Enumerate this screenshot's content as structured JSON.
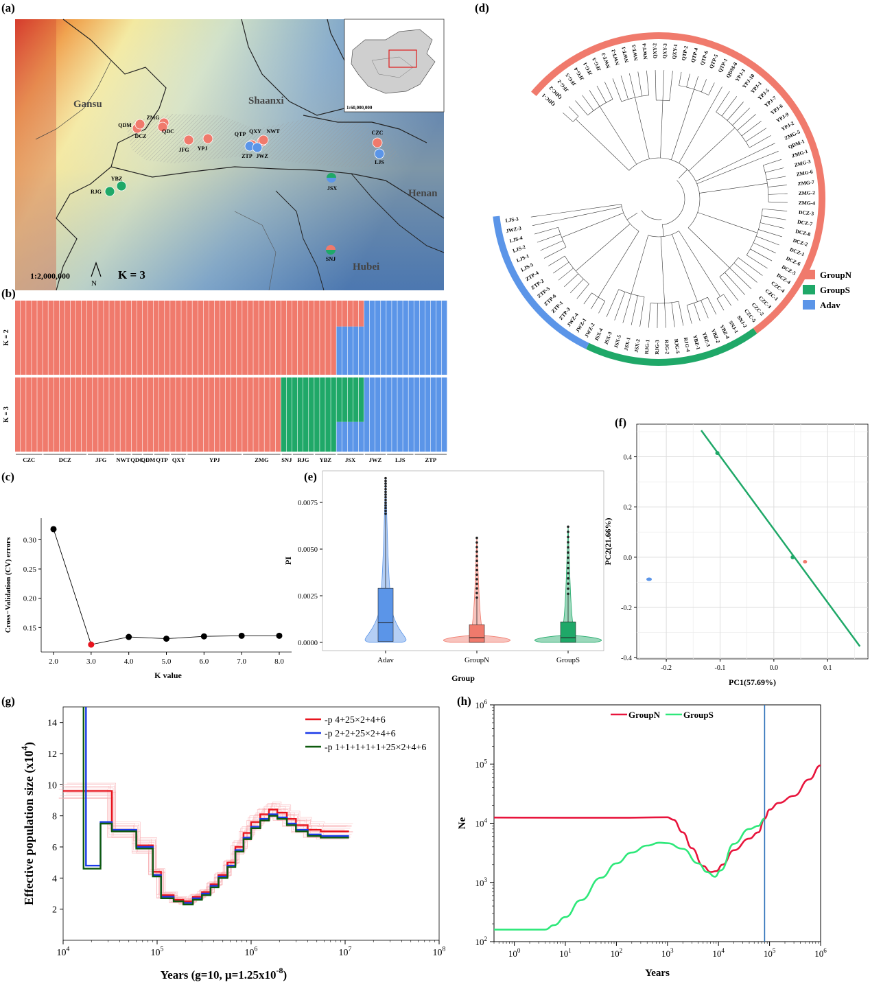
{
  "panels": {
    "a": "(a)",
    "b": "(b)",
    "c": "(c)",
    "d": "(d)",
    "e": "(e)",
    "f": "(f)",
    "g": "(g)",
    "h": "(h)"
  },
  "map": {
    "provinces": [
      "Gansu",
      "Shaanxi",
      "Henan",
      "Hubei"
    ],
    "sites": [
      {
        "code": "QDM",
        "colors": [
          "#f07a6c"
        ]
      },
      {
        "code": "ZMG",
        "colors": [
          "#f07a6c"
        ]
      },
      {
        "code": "DCZ",
        "colors": [
          "#f07a6c"
        ]
      },
      {
        "code": "QDC",
        "colors": [
          "#f07a6c"
        ]
      },
      {
        "code": "JFG",
        "colors": [
          "#f07a6c"
        ]
      },
      {
        "code": "YPJ",
        "colors": [
          "#f07a6c"
        ]
      },
      {
        "code": "QTP",
        "colors": [
          "#f07a6c"
        ]
      },
      {
        "code": "QXY",
        "colors": [
          "#f07a6c"
        ]
      },
      {
        "code": "NWT",
        "colors": [
          "#f07a6c"
        ]
      },
      {
        "code": "ZTP",
        "colors": [
          "#5b95e8"
        ]
      },
      {
        "code": "JWZ",
        "colors": [
          "#5b95e8"
        ]
      },
      {
        "code": "CZC",
        "colors": [
          "#f07a6c"
        ]
      },
      {
        "code": "LJS",
        "colors": [
          "#5b95e8"
        ]
      },
      {
        "code": "JSX",
        "colors": [
          "#1fa868",
          "#5b95e8"
        ]
      },
      {
        "code": "YBZ",
        "colors": [
          "#1fa868"
        ]
      },
      {
        "code": "RJG",
        "colors": [
          "#1fa868"
        ]
      },
      {
        "code": "SNJ",
        "colors": [
          "#f07a6c",
          "#1fa868"
        ]
      }
    ],
    "scale": "1:2,000,000",
    "north": "N",
    "k_label": "K = 3",
    "inset_scale": "1:60,000,000"
  },
  "colors": {
    "groupN": "#f07a6c",
    "groupS": "#1fa868",
    "adav": "#5b95e8"
  },
  "structure": {
    "rows": [
      "K = 2",
      "K = 3"
    ],
    "populations": [
      {
        "name": "CZC",
        "n": 5
      },
      {
        "name": "DCZ",
        "n": 8
      },
      {
        "name": "JFG",
        "n": 5
      },
      {
        "name": "NWT",
        "n": 3
      },
      {
        "name": "QDC",
        "n": 2
      },
      {
        "name": "QDM",
        "n": 2
      },
      {
        "name": "QTP",
        "n": 3
      },
      {
        "name": "QXY",
        "n": 3
      },
      {
        "name": "YPJ",
        "n": 10
      },
      {
        "name": "ZMG",
        "n": 7
      },
      {
        "name": "SNJ",
        "n": 2
      },
      {
        "name": "RJG",
        "n": 4
      },
      {
        "name": "YBZ",
        "n": 4
      },
      {
        "name": "JSX",
        "n": 5
      },
      {
        "name": "JWZ",
        "n": 4
      },
      {
        "name": "LJS",
        "n": 5
      },
      {
        "name": "ZTP",
        "n": 6
      }
    ]
  },
  "cv_chart": {
    "ylabel": "Cross−Validation (CV) errors",
    "xlabel": "K value",
    "x_ticks": [
      "2.0",
      "3.0",
      "4.0",
      "5.0",
      "6.0",
      "7.0",
      "8.0"
    ],
    "y_ticks": [
      "0.15",
      "0.20",
      "0.25",
      "0.30"
    ],
    "points": [
      {
        "k": 2,
        "cv": 0.318
      },
      {
        "k": 3,
        "cv": 0.121
      },
      {
        "k": 4,
        "cv": 0.134
      },
      {
        "k": 5,
        "cv": 0.131
      },
      {
        "k": 6,
        "cv": 0.135
      },
      {
        "k": 7,
        "cv": 0.136
      },
      {
        "k": 8,
        "cv": 0.136
      }
    ]
  },
  "tree": {
    "legend": [
      {
        "label": "GroupN",
        "color": "#f07a6c"
      },
      {
        "label": "GroupS",
        "color": "#1fa868"
      },
      {
        "label": "Adav",
        "color": "#5b95e8"
      }
    ],
    "leaves": [
      "QDC-1",
      "QDC-2",
      "JFG-2",
      "JFG-5",
      "JFG-4",
      "JFG-1",
      "JFG-3",
      "NWT-3",
      "NWT-2",
      "NWT-1",
      "NWT-5",
      "NWT-4",
      "QXY-2",
      "QXY-3",
      "QXY-1",
      "QTP-2",
      "QTP-4",
      "QTP-6",
      "QTP-5",
      "QTP-1",
      "QDM-8",
      "YPJ-3",
      "YPJ-10",
      "YPJ-1",
      "YPJ-5",
      "YPJ-7",
      "YPJ-6",
      "YPJ-9",
      "YPJ-2",
      "ZMG-5",
      "QDM-1",
      "ZMG-1",
      "ZMG-3",
      "ZMG-6",
      "ZMG-7",
      "ZMG-2",
      "ZMG-4",
      "DCZ-3",
      "DCZ-7",
      "DCZ-8",
      "DCZ-2",
      "DCZ-1",
      "DCZ-6",
      "DCZ-5",
      "DCZ-4",
      "CZC-4",
      "CZC-1",
      "CZC-3",
      "CZC-2",
      "CZC-5",
      "SNJ-2",
      "SNJ-1",
      "YBZ-4",
      "YBZ-2",
      "YBZ-3",
      "YBZ-1",
      "RJG-4",
      "RJG-5",
      "RJG-2",
      "RJG-3",
      "RJG-1",
      "JSX-2",
      "JSX-1",
      "JSX-5",
      "JSX-3",
      "JSX-4",
      "JWZ-2",
      "JWZ-1",
      "JWZ-4",
      "ZTP-3",
      "ZTP-1",
      "ZTP-6",
      "ZTP-5",
      "ZTP-2",
      "ZTP-4",
      "LJS-5",
      "LJS-1",
      "LJS-2",
      "LJS-4",
      "JWZ-3",
      "LJS-3"
    ]
  },
  "pi_chart": {
    "ylabel": "PI",
    "xlabel": "Group",
    "y_ticks": [
      "0.0000",
      "0.0025",
      "0.0050",
      "0.0075"
    ],
    "groups": [
      {
        "name": "Adav",
        "color": "#5b95e8",
        "q1": 5e-05,
        "median": 0.00105,
        "q3": 0.0029,
        "wlow": 0.0,
        "whigh": 0.0069,
        "max": 0.0088
      },
      {
        "name": "GroupN",
        "color": "#f07a6c",
        "q1": 0.0,
        "median": 0.00025,
        "q3": 0.00095,
        "wlow": 0.0,
        "whigh": 0.0024,
        "max": 0.0056
      },
      {
        "name": "GroupS",
        "color": "#1fa868",
        "q1": 0.0,
        "median": 0.00025,
        "q3": 0.0011,
        "wlow": 0.0,
        "whigh": 0.0026,
        "max": 0.0062
      }
    ]
  },
  "pca": {
    "xlabel": "PC1(57.69%)",
    "ylabel": "PC2(21.66%)",
    "x_ticks": [
      "-0.2",
      "-0.1",
      "0.0",
      "0.1"
    ],
    "y_ticks": [
      "-0.4",
      "-0.2",
      "0.0",
      "0.2",
      "0.4"
    ],
    "groupS_line": [
      [
        -0.135,
        0.505
      ],
      [
        0.16,
        -0.355
      ]
    ],
    "groupS_points": [
      [
        -0.105,
        0.415
      ],
      [
        0.035,
        0.0
      ]
    ],
    "adav_point": [
      -0.232,
      -0.088
    ],
    "groupN_point": [
      0.058,
      -0.018
    ]
  },
  "psmc": {
    "ylabel_main": "Effective population size (x10",
    "ylabel_exp": "4",
    "ylabel_close": ")",
    "xlabel_main": "Years (g=10, μ=1.25x10",
    "xlabel_exp": "-8",
    "xlabel_close": ")",
    "y_ticks": [
      "2",
      "4",
      "6",
      "8",
      "10",
      "12",
      "14"
    ],
    "x_ticks": [
      {
        "base": "10",
        "exp": "4"
      },
      {
        "base": "10",
        "exp": "5"
      },
      {
        "base": "10",
        "exp": "6"
      },
      {
        "base": "10",
        "exp": "7"
      },
      {
        "base": "10",
        "exp": "8"
      }
    ],
    "series": [
      {
        "name": "-p 4+25×2+4+6",
        "color": "#e8141e",
        "points": [
          [
            10000,
            9.6
          ],
          [
            33000,
            9.6
          ],
          [
            33000,
            7.1
          ],
          [
            60000,
            7.1
          ],
          [
            60000,
            6.1
          ],
          [
            90000,
            6.1
          ],
          [
            90000,
            4.4
          ],
          [
            110000,
            4.4
          ],
          [
            110000,
            2.9
          ],
          [
            150000,
            2.9
          ],
          [
            150000,
            2.6
          ],
          [
            190000,
            2.6
          ],
          [
            190000,
            2.5
          ],
          [
            240000,
            2.5
          ],
          [
            240000,
            2.8
          ],
          [
            300000,
            2.8
          ],
          [
            300000,
            3.1
          ],
          [
            370000,
            3.1
          ],
          [
            370000,
            3.6
          ],
          [
            450000,
            3.6
          ],
          [
            450000,
            4.2
          ],
          [
            560000,
            4.2
          ],
          [
            560000,
            5.0
          ],
          [
            680000,
            5.0
          ],
          [
            680000,
            6.0
          ],
          [
            830000,
            6.0
          ],
          [
            830000,
            6.9
          ],
          [
            1000000,
            6.9
          ],
          [
            1000000,
            7.6
          ],
          [
            1250000,
            7.6
          ],
          [
            1250000,
            8.1
          ],
          [
            1550000,
            8.1
          ],
          [
            1550000,
            8.4
          ],
          [
            1900000,
            8.4
          ],
          [
            1900000,
            8.2
          ],
          [
            2400000,
            8.2
          ],
          [
            2400000,
            7.8
          ],
          [
            3000000,
            7.8
          ],
          [
            3000000,
            7.4
          ],
          [
            4000000,
            7.4
          ],
          [
            4000000,
            7.1
          ],
          [
            5500000,
            7.1
          ],
          [
            5500000,
            7.0
          ],
          [
            11000000,
            7.0
          ]
        ]
      },
      {
        "name": "-p 2+2+25×2+4+6",
        "color": "#1a39e8",
        "points": [
          [
            17500,
            15
          ],
          [
            17500,
            4.8
          ],
          [
            25000,
            4.8
          ],
          [
            25000,
            7.6
          ],
          [
            33000,
            7.6
          ],
          [
            33000,
            7.1
          ],
          [
            60000,
            7.1
          ],
          [
            60000,
            6.0
          ],
          [
            90000,
            6.0
          ],
          [
            90000,
            4.2
          ],
          [
            110000,
            4.2
          ],
          [
            110000,
            2.8
          ],
          [
            150000,
            2.8
          ],
          [
            150000,
            2.5
          ],
          [
            190000,
            2.5
          ],
          [
            190000,
            2.4
          ],
          [
            240000,
            2.4
          ],
          [
            240000,
            2.7
          ],
          [
            300000,
            2.7
          ],
          [
            300000,
            3.0
          ],
          [
            370000,
            3.0
          ],
          [
            370000,
            3.5
          ],
          [
            450000,
            3.5
          ],
          [
            450000,
            4.1
          ],
          [
            560000,
            4.1
          ],
          [
            560000,
            4.8
          ],
          [
            680000,
            4.8
          ],
          [
            680000,
            5.8
          ],
          [
            830000,
            5.8
          ],
          [
            830000,
            6.6
          ],
          [
            1000000,
            6.6
          ],
          [
            1000000,
            7.3
          ],
          [
            1250000,
            7.3
          ],
          [
            1250000,
            7.8
          ],
          [
            1550000,
            7.8
          ],
          [
            1550000,
            8.1
          ],
          [
            1900000,
            8.1
          ],
          [
            1900000,
            7.9
          ],
          [
            2400000,
            7.9
          ],
          [
            2400000,
            7.5
          ],
          [
            3000000,
            7.5
          ],
          [
            3000000,
            7.1
          ],
          [
            4000000,
            7.1
          ],
          [
            4000000,
            6.8
          ],
          [
            5500000,
            6.8
          ],
          [
            5500000,
            6.7
          ],
          [
            11000000,
            6.7
          ]
        ]
      },
      {
        "name": "-p 1+1+1+1+1+25×2+4+6",
        "color": "#0e5a0e",
        "points": [
          [
            16500,
            15
          ],
          [
            16500,
            4.6
          ],
          [
            25000,
            4.6
          ],
          [
            25000,
            7.5
          ],
          [
            33000,
            7.5
          ],
          [
            33000,
            7.0
          ],
          [
            60000,
            7.0
          ],
          [
            60000,
            5.9
          ],
          [
            90000,
            5.9
          ],
          [
            90000,
            4.1
          ],
          [
            110000,
            4.1
          ],
          [
            110000,
            2.7
          ],
          [
            150000,
            2.7
          ],
          [
            150000,
            2.5
          ],
          [
            190000,
            2.5
          ],
          [
            190000,
            2.3
          ],
          [
            240000,
            2.3
          ],
          [
            240000,
            2.6
          ],
          [
            300000,
            2.6
          ],
          [
            300000,
            2.9
          ],
          [
            370000,
            2.9
          ],
          [
            370000,
            3.4
          ],
          [
            450000,
            3.4
          ],
          [
            450000,
            4.0
          ],
          [
            560000,
            4.0
          ],
          [
            560000,
            4.7
          ],
          [
            680000,
            4.7
          ],
          [
            680000,
            5.7
          ],
          [
            830000,
            5.7
          ],
          [
            830000,
            6.5
          ],
          [
            1000000,
            6.5
          ],
          [
            1000000,
            7.2
          ],
          [
            1250000,
            7.2
          ],
          [
            1250000,
            7.7
          ],
          [
            1550000,
            7.7
          ],
          [
            1550000,
            8.0
          ],
          [
            1900000,
            8.0
          ],
          [
            1900000,
            7.8
          ],
          [
            2400000,
            7.8
          ],
          [
            2400000,
            7.4
          ],
          [
            3000000,
            7.4
          ],
          [
            3000000,
            7.0
          ],
          [
            4000000,
            7.0
          ],
          [
            4000000,
            6.7
          ],
          [
            5500000,
            6.7
          ],
          [
            5500000,
            6.6
          ],
          [
            11000000,
            6.6
          ]
        ]
      }
    ]
  },
  "ne_chart": {
    "ylabel": "Ne",
    "xlabel": "Years",
    "x_ticks": [
      {
        "base": "10",
        "exp": "0"
      },
      {
        "base": "10",
        "exp": "1"
      },
      {
        "base": "10",
        "exp": "2"
      },
      {
        "base": "10",
        "exp": "3"
      },
      {
        "base": "10",
        "exp": "4"
      },
      {
        "base": "10",
        "exp": "5"
      },
      {
        "base": "10",
        "exp": "6"
      }
    ],
    "y_ticks": [
      {
        "base": "10",
        "exp": "2"
      },
      {
        "base": "10",
        "exp": "3"
      },
      {
        "base": "10",
        "exp": "4"
      },
      {
        "base": "10",
        "exp": "5"
      },
      {
        "base": "10",
        "exp": "6"
      }
    ],
    "vline_x": 80000,
    "series": [
      {
        "name": "GroupN",
        "color": "#e8143c",
        "points": [
          [
            0.4,
            12500
          ],
          [
            10,
            12400
          ],
          [
            100,
            12400
          ],
          [
            1000,
            12600
          ],
          [
            1300,
            11500
          ],
          [
            2000,
            7000
          ],
          [
            3000,
            3800
          ],
          [
            5000,
            1900
          ],
          [
            7000,
            1500
          ],
          [
            9000,
            1550
          ],
          [
            12000,
            2000
          ],
          [
            20000,
            3500
          ],
          [
            40000,
            5500
          ],
          [
            60000,
            7000
          ],
          [
            80000,
            12000
          ],
          [
            100000,
            17000
          ],
          [
            150000,
            22000
          ],
          [
            300000,
            29000
          ],
          [
            600000,
            55000
          ],
          [
            1000000,
            95000
          ]
        ]
      },
      {
        "name": "GroupS",
        "color": "#2ee87a",
        "points": [
          [
            0.4,
            160
          ],
          [
            2,
            160
          ],
          [
            4,
            160
          ],
          [
            6,
            190
          ],
          [
            10,
            260
          ],
          [
            20,
            500
          ],
          [
            50,
            1200
          ],
          [
            100,
            2100
          ],
          [
            200,
            3200
          ],
          [
            400,
            4200
          ],
          [
            700,
            4700
          ],
          [
            1000,
            4600
          ],
          [
            2000,
            3700
          ],
          [
            4000,
            2100
          ],
          [
            6000,
            1500
          ],
          [
            8500,
            1250
          ],
          [
            11000,
            1600
          ],
          [
            20000,
            4500
          ],
          [
            40000,
            8000
          ],
          [
            60000,
            9000
          ],
          [
            80000,
            12000
          ]
        ]
      }
    ]
  }
}
